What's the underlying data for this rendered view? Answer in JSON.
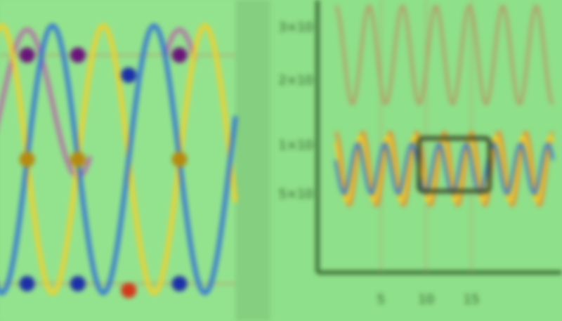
{
  "colors": {
    "background": "#8fe08a",
    "left_panel": "#93e38e",
    "divider": "#84cf80",
    "gridline": "#b59a64",
    "axis": "#2f5a2a",
    "orange": "#e98b2a",
    "purple": "#b46fa6",
    "yellow": "#f2d12b",
    "blue": "#2f6fd6",
    "marker_blue": "#1c2ea8",
    "marker_purple": "#6a137a",
    "marker_gold": "#b58a10",
    "marker_red": "#d3391b",
    "box": "#3c4b2a"
  },
  "chart_data": [
    {
      "type": "line",
      "title": "",
      "xlabel": "",
      "ylabel": "",
      "x_unit_pi": true,
      "xlim": [
        -0.35,
        2.05
      ],
      "ylim": [
        -1.12,
        1.15
      ],
      "grid": true,
      "series": [
        {
          "color_key": "orange",
          "function": "sin",
          "amplitude": 1,
          "phase": 0.5
        },
        {
          "color_key": "purple",
          "function": "abs_cos",
          "amplitude": 1,
          "phase": 0.0
        },
        {
          "color_key": "yellow",
          "function": "sin",
          "amplitude": 1,
          "phase": -0.5
        },
        {
          "color_key": "blue",
          "function": "sin",
          "amplitude": 1,
          "phase": 0.0
        }
      ],
      "markers": [
        {
          "x": 0.0,
          "y": 0.78,
          "color_key": "marker_purple"
        },
        {
          "x": 0.5,
          "y": 0.78,
          "color_key": "marker_purple"
        },
        {
          "x": 1.5,
          "y": 0.78,
          "color_key": "marker_purple"
        },
        {
          "x": 0.0,
          "y": 0.0,
          "color_key": "marker_gold"
        },
        {
          "x": 0.5,
          "y": 0.0,
          "color_key": "marker_gold"
        },
        {
          "x": 1.5,
          "y": 0.0,
          "color_key": "marker_gold"
        },
        {
          "x": 0.0,
          "y": -0.93,
          "color_key": "marker_blue"
        },
        {
          "x": 0.5,
          "y": -0.93,
          "color_key": "marker_blue"
        },
        {
          "x": 1.5,
          "y": -0.93,
          "color_key": "marker_blue"
        },
        {
          "x": 1.0,
          "y": 0.63,
          "color_key": "marker_blue"
        },
        {
          "x": 1.0,
          "y": -0.98,
          "color_key": "marker_red"
        }
      ]
    },
    {
      "type": "line",
      "title": "",
      "xlabel": "",
      "ylabel": "",
      "xlim": [
        -2,
        25
      ],
      "ylim": [
        -1.6,
        5.1
      ],
      "grid": true,
      "yticks": [
        "3×10",
        "2×10",
        "1×10",
        "5×10"
      ],
      "ytick_values": [
        4.45,
        3.15,
        1.55,
        0.35
      ],
      "xticks": [
        "5",
        "10",
        "15"
      ],
      "xtick_values": [
        5,
        10,
        15
      ],
      "series": [
        {
          "color_key": "gridline",
          "cycles": 6.5,
          "center": 3.75,
          "amplitude": 1.2
        },
        {
          "color_key": "orange",
          "cycles": 8,
          "center": 0.95,
          "amplitude": 0.9
        },
        {
          "color_key": "yellow",
          "cycles": 8,
          "center": 0.95,
          "amplitude": 0.8,
          "phase": 0.6
        },
        {
          "color_key": "blue",
          "cycles": 8,
          "center": 0.95,
          "amplitude": 0.6,
          "phase": 1.2
        }
      ],
      "annotation_box": {
        "x0": 9.2,
        "x1": 17.0,
        "y0": 0.4,
        "y1": 1.7
      }
    }
  ]
}
